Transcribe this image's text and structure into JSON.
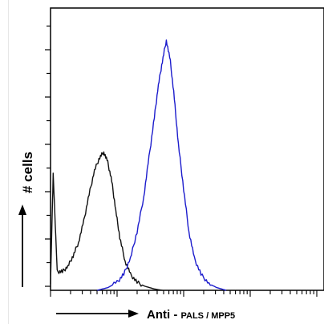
{
  "chart_data": {
    "type": "line",
    "title": "",
    "ylabel": "# cells",
    "xlabel": {
      "prefix": "Anti - ",
      "target": "PALS / MPP5"
    },
    "xscale": "log",
    "grid": false,
    "legend": "none",
    "xlim": [
      0,
      4
    ],
    "ylim": [
      0,
      100
    ],
    "series": [
      {
        "color": "#111111",
        "x": [
          0.0,
          0.04,
          0.1,
          0.18,
          0.26,
          0.34,
          0.42,
          0.5,
          0.58,
          0.66,
          0.74,
          0.8,
          0.86,
          0.92,
          0.98,
          1.04,
          1.12,
          1.2,
          1.3,
          1.42,
          1.56,
          1.68
        ],
        "y": [
          3,
          44,
          7,
          7,
          9,
          13,
          18,
          26,
          36,
          45,
          50,
          52,
          48,
          41,
          30,
          20,
          11,
          6,
          3,
          1.5,
          0.5,
          0
        ]
      },
      {
        "color": "#1c1ccc",
        "x": [
          0.7,
          0.86,
          1.0,
          1.1,
          1.2,
          1.3,
          1.4,
          1.48,
          1.56,
          1.62,
          1.68,
          1.74,
          1.8,
          1.86,
          1.92,
          2.0,
          2.08,
          2.16,
          2.26,
          2.38,
          2.5,
          2.64
        ],
        "y": [
          0,
          1,
          3,
          6,
          12,
          22,
          35,
          50,
          65,
          77,
          86,
          94,
          86,
          72,
          55,
          38,
          22,
          12,
          6,
          2.5,
          1,
          0
        ]
      }
    ]
  }
}
